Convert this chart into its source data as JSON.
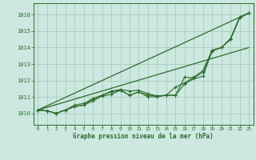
{
  "title": "Graphe pression niveau de la mer (hPa)",
  "background_color": "#cce8e0",
  "grid_color": "#aaccbb",
  "line_color": "#2d6b2d",
  "xlim": [
    -0.5,
    23.5
  ],
  "ylim": [
    1009.3,
    1016.7
  ],
  "yticks": [
    1010,
    1011,
    1012,
    1013,
    1014,
    1015,
    1016
  ],
  "xticks": [
    0,
    1,
    2,
    3,
    4,
    5,
    6,
    7,
    8,
    9,
    10,
    11,
    12,
    13,
    14,
    15,
    16,
    17,
    18,
    19,
    20,
    21,
    22,
    23
  ],
  "series": [
    [
      1010.2,
      1010.15,
      1010.0,
      1010.2,
      1010.4,
      1010.5,
      1010.75,
      1011.05,
      1011.15,
      1011.4,
      1011.1,
      1011.3,
      1011.1,
      1011.05,
      1011.1,
      1011.6,
      1011.85,
      1012.2,
      1012.6,
      1013.85,
      1014.0,
      1014.55,
      1015.85,
      1016.1
    ],
    [
      1010.2,
      1010.15,
      1010.0,
      1010.2,
      1010.4,
      1010.5,
      1010.85,
      1011.1,
      1011.35,
      1011.45,
      1011.35,
      1011.4,
      1011.2,
      1011.05,
      1011.1,
      1011.1,
      1012.2,
      1012.15,
      1012.5,
      1013.8,
      1014.0,
      1014.5,
      1015.8,
      1016.1
    ],
    [
      1010.2,
      1010.15,
      1010.0,
      1010.2,
      1010.5,
      1010.6,
      1010.9,
      1011.1,
      1011.3,
      1011.4,
      1011.1,
      1011.3,
      1011.0,
      1011.0,
      1011.1,
      1011.1,
      1011.8,
      1012.1,
      1012.25,
      1013.8,
      1014.0,
      1014.5,
      1015.85,
      1016.1
    ]
  ],
  "straight_lines": [
    [
      [
        0,
        23
      ],
      [
        1010.2,
        1016.1
      ]
    ],
    [
      [
        0,
        23
      ],
      [
        1010.2,
        1014.0
      ]
    ]
  ]
}
